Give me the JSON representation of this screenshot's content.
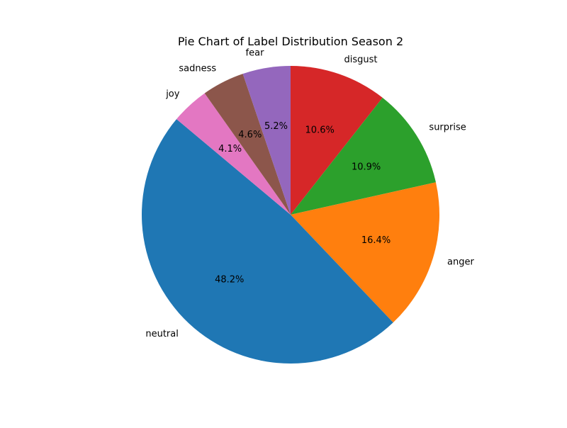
{
  "chart_data": {
    "type": "pie",
    "title": "Pie Chart of Label Distribution Season 2",
    "start_angle_deg": 90,
    "direction": "clockwise",
    "slices": [
      {
        "label": "disgust",
        "value": 10.6,
        "pct_label": "10.6%",
        "color": "#d62728"
      },
      {
        "label": "surprise",
        "value": 10.9,
        "pct_label": "10.9%",
        "color": "#2ca02c"
      },
      {
        "label": "anger",
        "value": 16.4,
        "pct_label": "16.4%",
        "color": "#ff7f0e"
      },
      {
        "label": "neutral",
        "value": 48.2,
        "pct_label": "48.2%",
        "color": "#1f77b4"
      },
      {
        "label": "joy",
        "value": 4.1,
        "pct_label": "4.1%",
        "color": "#e377c2"
      },
      {
        "label": "sadness",
        "value": 4.6,
        "pct_label": "4.6%",
        "color": "#8c564b"
      },
      {
        "label": "fear",
        "value": 5.2,
        "pct_label": "5.2%",
        "color": "#9467bd"
      }
    ]
  }
}
